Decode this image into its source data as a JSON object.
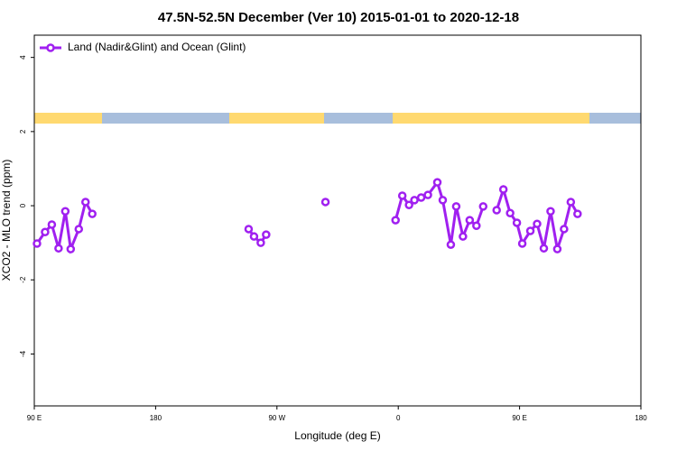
{
  "chart_data": {
    "type": "line",
    "title": "47.5N-52.5N December (Ver 10)   2015-01-01 to 2020-12-18",
    "xlabel": "Longitude (deg E)",
    "ylabel": "XCO2 - MLO trend (ppm)",
    "x": [
      92,
      98,
      103,
      108,
      113,
      117,
      123,
      128,
      133,
      null,
      249,
      253,
      258,
      262,
      null,
      306,
      null,
      358,
      363,
      368,
      372,
      377,
      382,
      389,
      393,
      399,
      403,
      408,
      413,
      418,
      423,
      null,
      433,
      438,
      443,
      448,
      452,
      458,
      463,
      468,
      473,
      478,
      483,
      488,
      493
    ],
    "series": [
      {
        "name": "Land (Nadir&Glint) and Ocean (Glint)",
        "color": "#a020f0",
        "values": [
          -1.02,
          -0.71,
          -0.51,
          -1.15,
          -0.15,
          -1.17,
          -0.63,
          0.1,
          -0.22,
          null,
          -0.63,
          -0.83,
          -1.0,
          -0.78,
          null,
          0.1,
          null,
          -0.39,
          0.27,
          0.02,
          0.15,
          0.22,
          0.29,
          0.63,
          0.15,
          -1.05,
          -0.02,
          -0.83,
          -0.39,
          -0.54,
          -0.02,
          null,
          -0.12,
          0.44,
          -0.2,
          -0.46,
          -1.02,
          -0.68,
          -0.49,
          -1.15,
          -0.15,
          -1.17,
          -0.63,
          0.1,
          -0.22
        ]
      }
    ],
    "xlim": [
      90,
      540
    ],
    "xticks": [
      {
        "value": 90,
        "label": "90 E"
      },
      {
        "value": 180,
        "label": "180"
      },
      {
        "value": 270,
        "label": "90 W"
      },
      {
        "value": 360,
        "label": "0"
      },
      {
        "value": 450,
        "label": "90 E"
      },
      {
        "value": 540,
        "label": "180"
      }
    ],
    "ylim": [
      -5.4,
      4.6
    ],
    "yticks": [
      -4,
      -2,
      0,
      2,
      4
    ],
    "legend": "top-left"
  }
}
